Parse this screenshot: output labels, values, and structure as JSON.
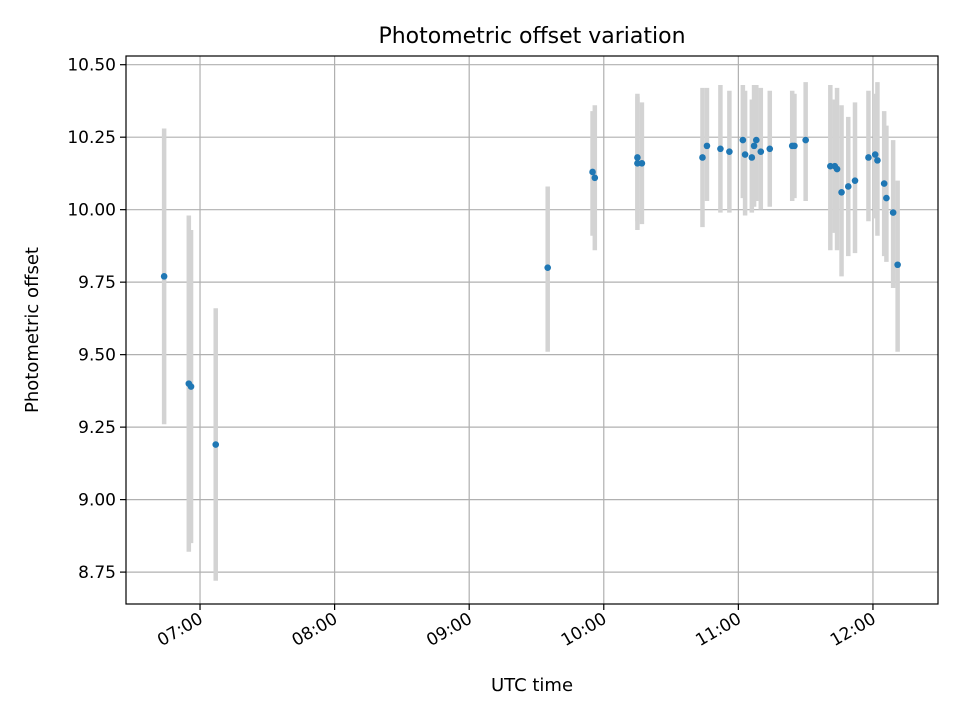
{
  "chart_data": {
    "type": "scatter",
    "title": "Photometric offset variation",
    "xlabel": "UTC time",
    "ylabel": "Photometric offset",
    "x_unit": "UTC time of day (HH:MM)",
    "xlim": [
      "06:27",
      "12:29"
    ],
    "ylim": [
      8.64,
      10.53
    ],
    "xticks": [
      "07:00",
      "08:00",
      "09:00",
      "10:00",
      "11:00",
      "12:00"
    ],
    "yticks": [
      8.75,
      9.0,
      9.25,
      9.5,
      9.75,
      10.0,
      10.25,
      10.5
    ],
    "ytick_labels": [
      "8.75",
      "9.00",
      "9.25",
      "9.50",
      "9.75",
      "10.00",
      "10.25",
      "10.50"
    ],
    "grid": true,
    "marker_color": "#1f77b4",
    "errorbar_color": "#d3d3d3",
    "points": [
      {
        "x": "06:44",
        "y": 9.77,
        "ylo": 9.26,
        "yhi": 10.28
      },
      {
        "x": "06:55",
        "y": 9.4,
        "ylo": 8.82,
        "yhi": 9.98
      },
      {
        "x": "06:56",
        "y": 9.39,
        "ylo": 8.85,
        "yhi": 9.93
      },
      {
        "x": "07:07",
        "y": 9.19,
        "ylo": 8.72,
        "yhi": 9.66
      },
      {
        "x": "09:35",
        "y": 9.8,
        "ylo": 9.51,
        "yhi": 10.08
      },
      {
        "x": "09:55",
        "y": 10.13,
        "ylo": 9.91,
        "yhi": 10.34
      },
      {
        "x": "09:56",
        "y": 10.11,
        "ylo": 9.86,
        "yhi": 10.36
      },
      {
        "x": "10:15",
        "y": 10.16,
        "ylo": 9.93,
        "yhi": 10.4
      },
      {
        "x": "10:15",
        "y": 10.18,
        "ylo": 9.96,
        "yhi": 10.39
      },
      {
        "x": "10:17",
        "y": 10.16,
        "ylo": 9.95,
        "yhi": 10.37
      },
      {
        "x": "10:44",
        "y": 10.18,
        "ylo": 9.94,
        "yhi": 10.42
      },
      {
        "x": "10:46",
        "y": 10.22,
        "ylo": 10.03,
        "yhi": 10.42
      },
      {
        "x": "10:52",
        "y": 10.21,
        "ylo": 9.99,
        "yhi": 10.43
      },
      {
        "x": "10:56",
        "y": 10.2,
        "ylo": 9.99,
        "yhi": 10.41
      },
      {
        "x": "11:02",
        "y": 10.24,
        "ylo": 10.04,
        "yhi": 10.43
      },
      {
        "x": "11:03",
        "y": 10.19,
        "ylo": 9.98,
        "yhi": 10.41
      },
      {
        "x": "11:06",
        "y": 10.18,
        "ylo": 9.99,
        "yhi": 10.38
      },
      {
        "x": "11:07",
        "y": 10.22,
        "ylo": 10.01,
        "yhi": 10.43
      },
      {
        "x": "11:08",
        "y": 10.24,
        "ylo": 10.03,
        "yhi": 10.43
      },
      {
        "x": "11:10",
        "y": 10.2,
        "ylo": 10.0,
        "yhi": 10.42
      },
      {
        "x": "11:14",
        "y": 10.21,
        "ylo": 10.01,
        "yhi": 10.41
      },
      {
        "x": "11:24",
        "y": 10.22,
        "ylo": 10.03,
        "yhi": 10.41
      },
      {
        "x": "11:25",
        "y": 10.22,
        "ylo": 10.04,
        "yhi": 10.4
      },
      {
        "x": "11:30",
        "y": 10.24,
        "ylo": 10.03,
        "yhi": 10.44
      },
      {
        "x": "11:41",
        "y": 10.15,
        "ylo": 9.86,
        "yhi": 10.43
      },
      {
        "x": "11:43",
        "y": 10.15,
        "ylo": 9.92,
        "yhi": 10.38
      },
      {
        "x": "11:44",
        "y": 10.14,
        "ylo": 9.86,
        "yhi": 10.42
      },
      {
        "x": "11:46",
        "y": 10.06,
        "ylo": 9.77,
        "yhi": 10.36
      },
      {
        "x": "11:49",
        "y": 10.08,
        "ylo": 9.84,
        "yhi": 10.32
      },
      {
        "x": "11:52",
        "y": 10.1,
        "ylo": 9.85,
        "yhi": 10.37
      },
      {
        "x": "11:58",
        "y": 10.18,
        "ylo": 9.96,
        "yhi": 10.41
      },
      {
        "x": "12:01",
        "y": 10.19,
        "ylo": 9.97,
        "yhi": 10.4
      },
      {
        "x": "12:02",
        "y": 10.17,
        "ylo": 9.91,
        "yhi": 10.44
      },
      {
        "x": "12:05",
        "y": 10.09,
        "ylo": 9.84,
        "yhi": 10.34
      },
      {
        "x": "12:06",
        "y": 10.04,
        "ylo": 9.82,
        "yhi": 10.29
      },
      {
        "x": "12:09",
        "y": 9.99,
        "ylo": 9.73,
        "yhi": 10.24
      },
      {
        "x": "12:11",
        "y": 9.81,
        "ylo": 9.51,
        "yhi": 10.1
      }
    ]
  }
}
